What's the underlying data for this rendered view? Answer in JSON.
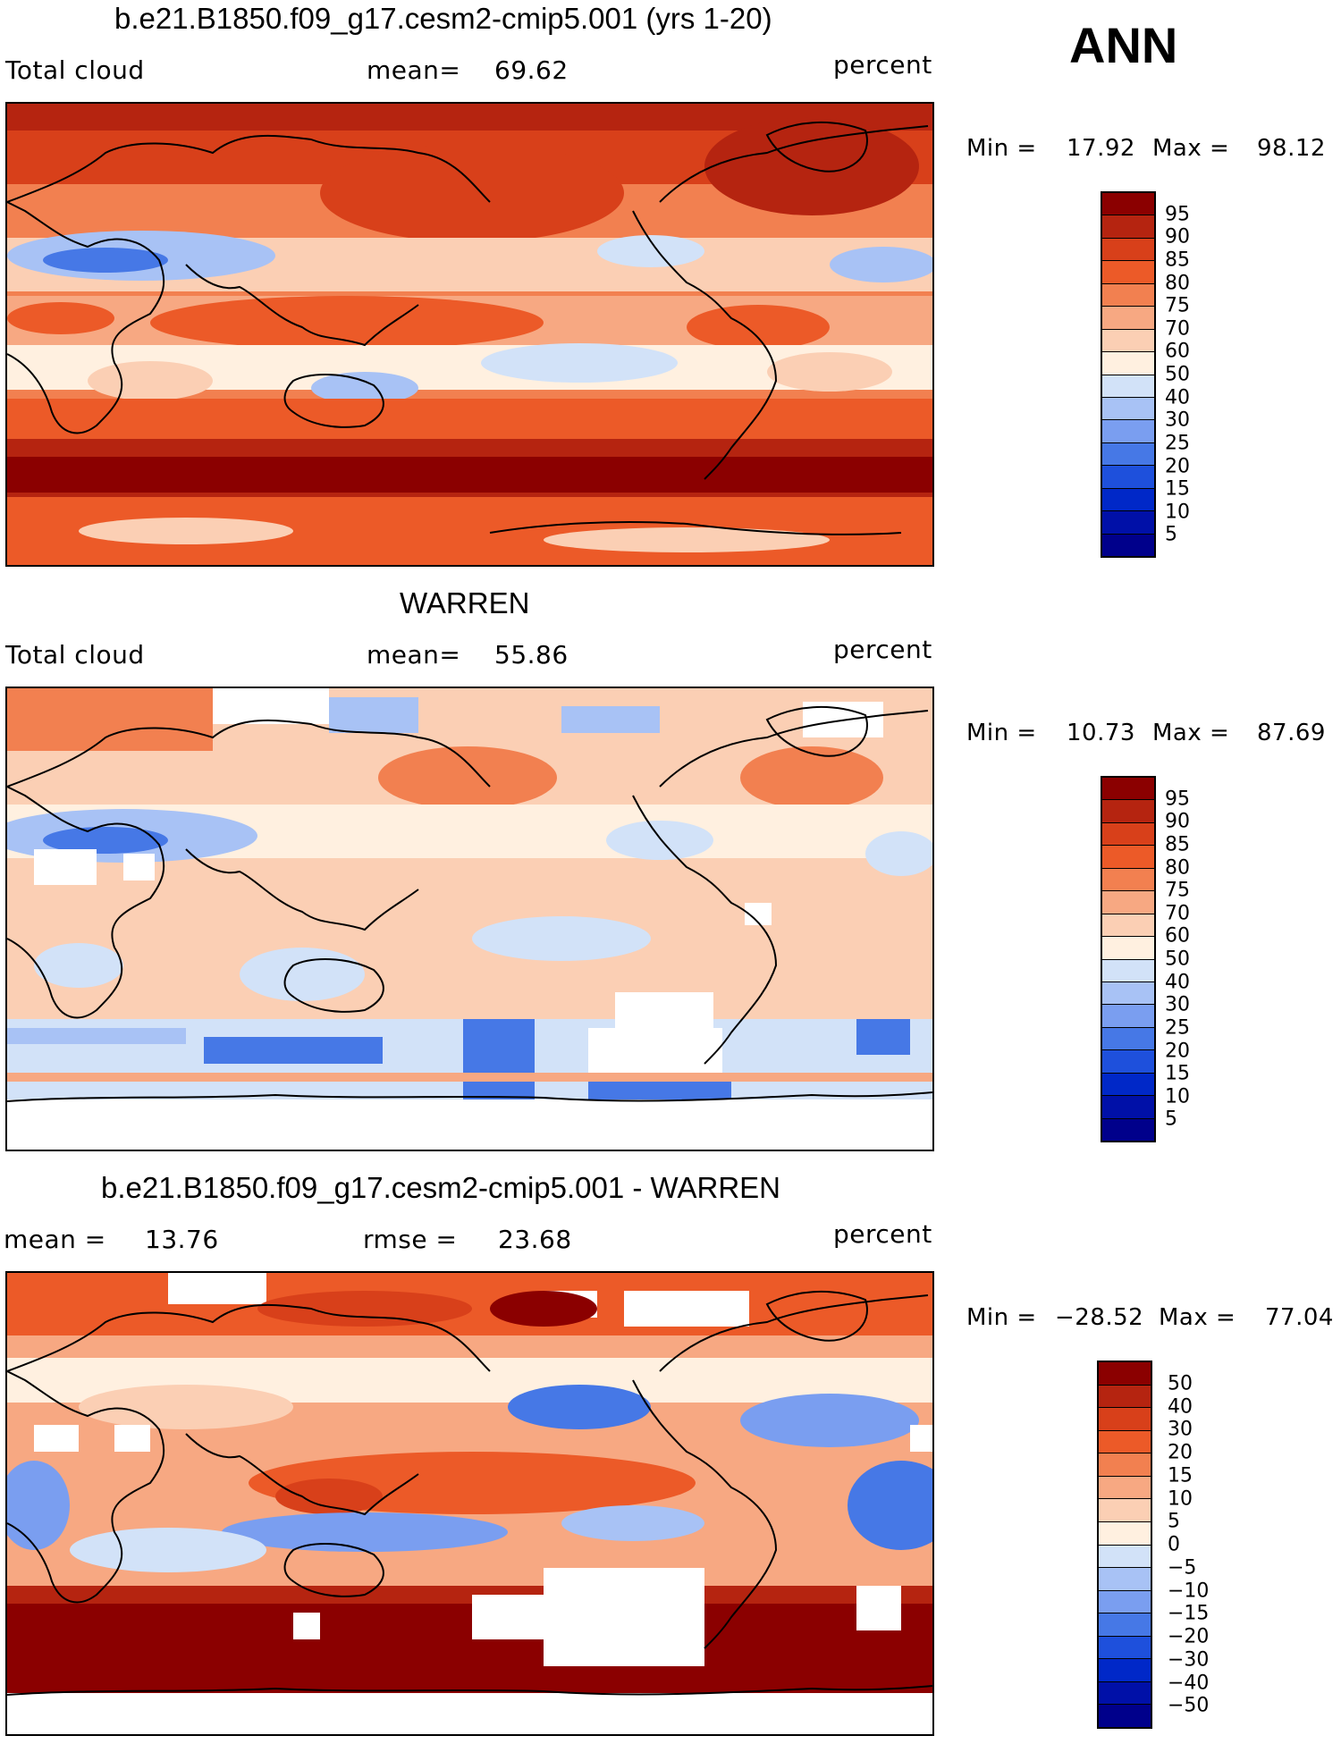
{
  "season": "ANN",
  "colors": {
    "model_scale": [
      "#00008b",
      "#0010a8",
      "#0028c8",
      "#1e50dc",
      "#4678e6",
      "#7a9ef0",
      "#a8c2f5",
      "#d2e2f8",
      "#fff0e0",
      "#fbcfb4",
      "#f7a882",
      "#f28050",
      "#ec5a28",
      "#d8401a",
      "#b52410",
      "#8b0000"
    ],
    "diff_scale": [
      "#00008b",
      "#0010a8",
      "#0028c8",
      "#1e50dc",
      "#4678e6",
      "#7a9ef0",
      "#a8c2f5",
      "#d2e2f8",
      "#fff0e0",
      "#fbcfb4",
      "#f7a882",
      "#f28050",
      "#ec5a28",
      "#d8401a",
      "#b52410",
      "#8b0000"
    ],
    "coast": "#000000"
  },
  "panels": [
    {
      "id": "model",
      "title": "b.e21.B1850.f09_g17.cesm2-cmip5.001 (yrs 1-20)",
      "left_label": "Total cloud",
      "mid_label": "mean=",
      "mid_value": "69.62",
      "units": "percent",
      "min_label": "Min =",
      "min_value": "17.92",
      "max_label": "Max =",
      "max_value": "98.12",
      "colorbar_ticks": [
        "95",
        "90",
        "85",
        "80",
        "75",
        "70",
        "60",
        "50",
        "40",
        "30",
        "25",
        "20",
        "15",
        "10",
        "5"
      ]
    },
    {
      "id": "obs",
      "title": "WARREN",
      "left_label": "Total cloud",
      "mid_label": "mean=",
      "mid_value": "55.86",
      "units": "percent",
      "min_label": "Min =",
      "min_value": "10.73",
      "max_label": "Max =",
      "max_value": "87.69",
      "colorbar_ticks": [
        "95",
        "90",
        "85",
        "80",
        "75",
        "70",
        "60",
        "50",
        "40",
        "30",
        "25",
        "20",
        "15",
        "10",
        "5"
      ]
    },
    {
      "id": "diff",
      "title": "b.e21.B1850.f09_g17.cesm2-cmip5.001 - WARREN",
      "left_label": "mean =",
      "left_value": "13.76",
      "mid_label": "rmse =",
      "mid_value": "23.68",
      "units": "percent",
      "min_label": "Min =",
      "min_value": "−28.52",
      "max_label": "Max =",
      "max_value": "77.04",
      "colorbar_ticks": [
        "50",
        "40",
        "30",
        "20",
        "15",
        "10",
        "5",
        "0",
        "−5",
        "−10",
        "−15",
        "−20",
        "−30",
        "−40",
        "−50"
      ]
    }
  ]
}
